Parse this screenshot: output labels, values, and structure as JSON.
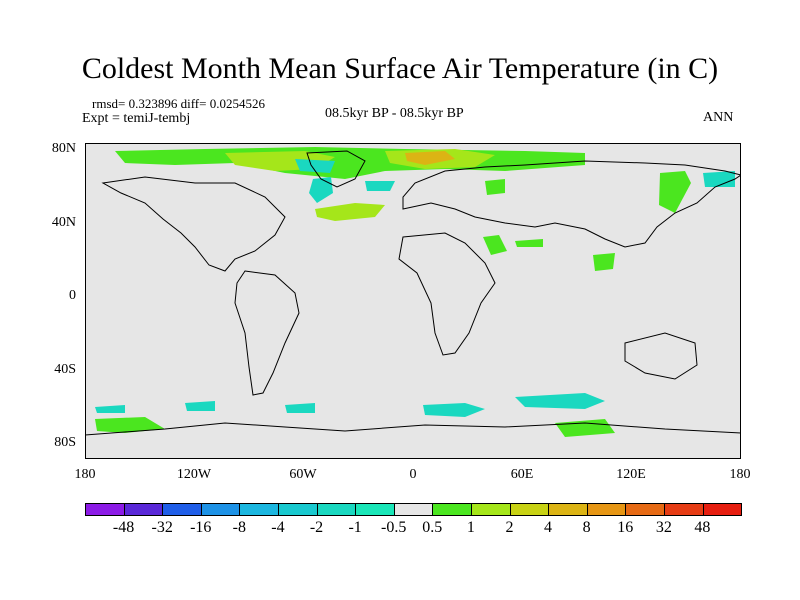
{
  "title": "Coldest Month Mean Surface Air Temperature (in C)",
  "stats": "rmsd= 0.323896 diff= 0.0254526",
  "experiment": "Expt = temiJ-tembj",
  "period": "08.5kyr BP - 08.5kyr BP",
  "season": "ANN",
  "lat_labels": [
    "80N",
    "40N",
    "0",
    "40S",
    "80S"
  ],
  "lon_labels": [
    "180",
    "120W",
    "60W",
    "0",
    "60E",
    "120E",
    "180"
  ],
  "colorbar": {
    "labels": [
      "-48",
      "-32",
      "-16",
      "-8",
      "-4",
      "-2",
      "-1",
      "-0.5",
      "0.5",
      "1",
      "2",
      "4",
      "8",
      "16",
      "32",
      "48"
    ],
    "colors": [
      "#8c1be6",
      "#5a28d8",
      "#1f5ee8",
      "#1d92e6",
      "#1cb7e0",
      "#19c9cf",
      "#1ad8c0",
      "#1ae6b8",
      "#e6e6e6",
      "#4be61f",
      "#a5e61a",
      "#c8d214",
      "#dcb414",
      "#e69614",
      "#e66a14",
      "#e63c14",
      "#e61e10"
    ]
  }
}
